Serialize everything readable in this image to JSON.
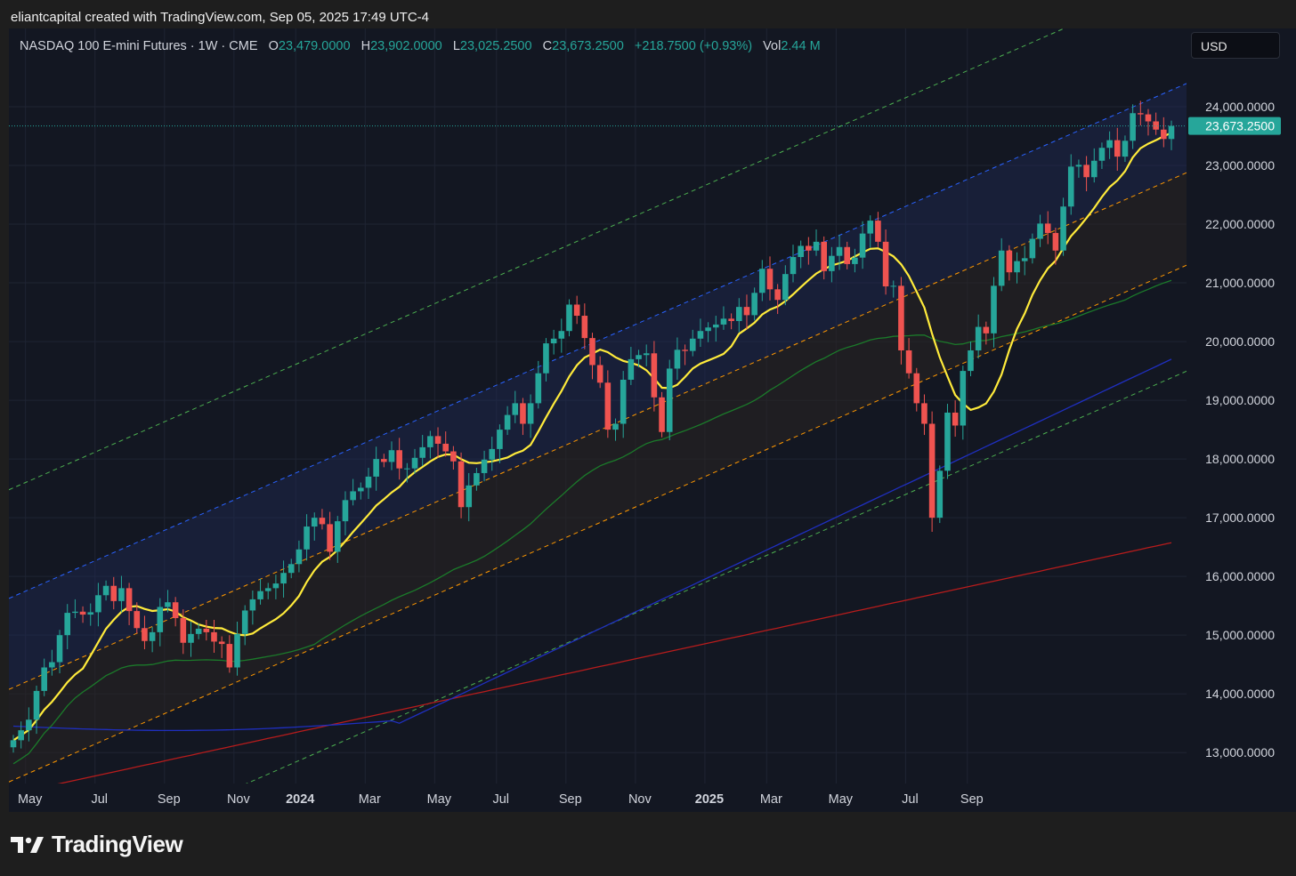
{
  "header": {
    "credit": "eliantcapital created with TradingView.com, Sep 05, 2025 17:49 UTC-4"
  },
  "legend": {
    "symbol": "NASDAQ 100 E-mini Futures · 1W · CME",
    "open_label": "O",
    "open": "23,479.0000",
    "high_label": "H",
    "high": "23,902.0000",
    "low_label": "L",
    "low": "23,025.2500",
    "close_label": "C",
    "close": "23,673.2500",
    "change": "+218.7500 (+0.93%)",
    "vol_label": "Vol",
    "vol": "2.44 M"
  },
  "currency_button": "USD",
  "brand": {
    "name": "TradingView",
    "icon": "tradingview-logo-icon"
  },
  "colors": {
    "up": "#26a69a",
    "down": "#ef5350",
    "yellow_ma": "#ffeb3b",
    "green_ma": "#1b7a2a",
    "blue_ma": "#1a237e",
    "red_ma": "#b71c1c",
    "channel_outer": "#4caf50",
    "channel_upper": "#2962ff",
    "channel_mid": "#ff9800"
  },
  "chart_data": {
    "type": "candlestick",
    "timeframe": "1W",
    "y_axis": {
      "min": 12500,
      "max": 25200,
      "ticks": [
        13000,
        14000,
        15000,
        16000,
        17000,
        18000,
        19000,
        20000,
        21000,
        22000,
        23000,
        24000
      ]
    },
    "y_tick_labels": [
      "13,000.0000",
      "14,000.0000",
      "15,000.0000",
      "16,000.0000",
      "17,000.0000",
      "18,000.0000",
      "19,000.0000",
      "20,000.0000",
      "21,000.0000",
      "22,000.0000",
      "23,000.0000",
      "24,000.0000"
    ],
    "x_ticks": [
      {
        "label": "May",
        "week": 1,
        "bold": false
      },
      {
        "label": "Jul",
        "week": 10,
        "bold": false
      },
      {
        "label": "Sep",
        "week": 19,
        "bold": false
      },
      {
        "label": "Nov",
        "week": 28,
        "bold": false
      },
      {
        "label": "2024",
        "week": 36,
        "bold": true
      },
      {
        "label": "Mar",
        "week": 45,
        "bold": false
      },
      {
        "label": "May",
        "week": 54,
        "bold": false
      },
      {
        "label": "Jul",
        "week": 62,
        "bold": false
      },
      {
        "label": "Sep",
        "week": 71,
        "bold": false
      },
      {
        "label": "Nov",
        "week": 80,
        "bold": false
      },
      {
        "label": "2025",
        "week": 89,
        "bold": true
      },
      {
        "label": "Mar",
        "week": 97,
        "bold": false
      },
      {
        "label": "May",
        "week": 106,
        "bold": false
      },
      {
        "label": "Jul",
        "week": 115,
        "bold": false
      },
      {
        "label": "Sep",
        "week": 123,
        "bold": false
      }
    ],
    "last_price": 23673.25,
    "last_price_label": "23,673.2500",
    "closes": [
      13210,
      13380,
      13560,
      14050,
      14450,
      14540,
      15000,
      15380,
      15400,
      15350,
      15390,
      15680,
      15840,
      15580,
      15800,
      15410,
      15120,
      14900,
      15050,
      15480,
      15560,
      15290,
      14870,
      15020,
      15110,
      15050,
      14890,
      14850,
      14450,
      15020,
      15420,
      15610,
      15750,
      15800,
      15880,
      16060,
      16210,
      16460,
      16850,
      17000,
      16890,
      16420,
      16940,
      17300,
      17450,
      17510,
      17700,
      18000,
      17950,
      18150,
      17840,
      17840,
      18020,
      18200,
      18390,
      18260,
      18130,
      17960,
      17180,
      17550,
      17760,
      17990,
      18170,
      18500,
      18750,
      18950,
      18600,
      18950,
      19460,
      19970,
      20050,
      20180,
      20630,
      20440,
      20060,
      19600,
      19300,
      18500,
      18600,
      19350,
      19700,
      19770,
      19800,
      19050,
      18460,
      19540,
      19860,
      19840,
      20050,
      20180,
      20240,
      20290,
      20390,
      20350,
      20590,
      20450,
      20830,
      21240,
      20890,
      20710,
      21150,
      21440,
      21630,
      21550,
      21700,
      21200,
      21460,
      21610,
      21320,
      21430,
      21840,
      22060,
      21700,
      20940,
      20950,
      19850,
      19460,
      18950,
      18600,
      17000,
      17800,
      18790,
      18570,
      19500,
      19850,
      20250,
      20140,
      20950,
      21550,
      21180,
      21370,
      21420,
      21750,
      22010,
      21850,
      21550,
      22300,
      22980,
      23010,
      22800,
      23080,
      23300,
      23430,
      23150,
      23420,
      23890,
      23870,
      23750,
      23610,
      23450,
      23673
    ]
  }
}
